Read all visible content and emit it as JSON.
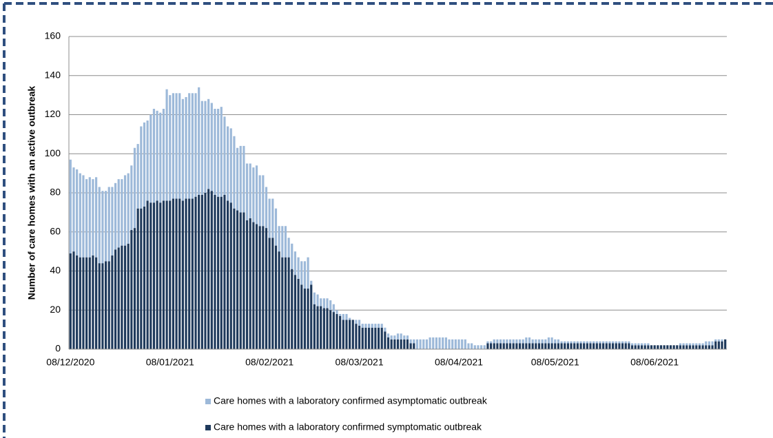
{
  "chart_data": {
    "type": "stacked-bar",
    "y_label": "Number of care homes with an active outbreak",
    "categories": [
      "08/12/2020",
      null,
      null,
      null,
      null,
      null,
      null,
      null,
      null,
      null,
      null,
      null,
      null,
      null,
      null,
      null,
      null,
      null,
      null,
      null,
      null,
      null,
      null,
      null,
      null,
      null,
      null,
      null,
      null,
      null,
      null,
      "08/01/2021",
      null,
      null,
      null,
      null,
      null,
      null,
      null,
      null,
      null,
      null,
      null,
      null,
      null,
      null,
      null,
      null,
      null,
      null,
      null,
      null,
      null,
      null,
      null,
      null,
      null,
      null,
      null,
      null,
      null,
      null,
      "08/02/2021",
      null,
      null,
      null,
      null,
      null,
      null,
      null,
      null,
      null,
      null,
      null,
      null,
      null,
      null,
      null,
      null,
      null,
      null,
      null,
      null,
      null,
      null,
      null,
      null,
      null,
      null,
      null,
      "08/03/2021",
      null,
      null,
      null,
      null,
      null,
      null,
      null,
      null,
      null,
      null,
      null,
      null,
      null,
      null,
      null,
      null,
      null,
      null,
      null,
      null,
      null,
      null,
      null,
      null,
      null,
      null,
      null,
      null,
      null,
      null,
      "08/04/2021",
      null,
      null,
      null,
      null,
      null,
      null,
      null,
      null,
      null,
      null,
      null,
      null,
      null,
      null,
      null,
      null,
      null,
      null,
      null,
      null,
      null,
      null,
      null,
      null,
      null,
      null,
      null,
      null,
      null,
      "08/05/2021",
      null,
      null,
      null,
      null,
      null,
      null,
      null,
      null,
      null,
      null,
      null,
      null,
      null,
      null,
      null,
      null,
      null,
      null,
      null,
      null,
      null,
      null,
      null,
      null,
      null,
      null,
      null,
      null,
      null,
      null,
      "08/06/2021",
      null,
      null,
      null,
      null,
      null,
      null,
      null,
      null,
      null,
      null,
      null,
      null,
      null,
      null,
      null,
      null,
      null,
      null,
      null,
      null,
      null,
      null
    ],
    "series": [
      {
        "name": "Care homes with a laboratory confirmed symptomatic outbreak",
        "color": "#1f3a5c",
        "values": [
          49,
          50,
          48,
          47,
          47,
          47,
          47,
          48,
          47,
          44,
          44,
          45,
          45,
          48,
          51,
          52,
          53,
          53,
          54,
          61,
          62,
          72,
          72,
          73,
          76,
          75,
          75,
          76,
          75,
          76,
          76,
          76,
          77,
          77,
          77,
          76,
          77,
          77,
          77,
          78,
          79,
          79,
          80,
          82,
          81,
          79,
          78,
          78,
          79,
          76,
          75,
          72,
          71,
          70,
          70,
          66,
          67,
          65,
          64,
          63,
          63,
          62,
          57,
          57,
          53,
          50,
          47,
          47,
          47,
          41,
          38,
          36,
          33,
          31,
          31,
          33,
          23,
          22,
          22,
          21,
          21,
          20,
          19,
          18,
          17,
          15,
          15,
          15,
          15,
          13,
          12,
          11,
          11,
          11,
          11,
          11,
          11,
          11,
          9,
          6,
          5,
          5,
          5,
          5,
          5,
          5,
          3,
          3,
          0,
          0,
          0,
          0,
          0,
          0,
          0,
          0,
          0,
          0,
          0,
          0,
          0,
          0,
          0,
          0,
          0,
          0,
          0,
          0,
          0,
          0,
          3,
          3,
          3,
          3,
          3,
          3,
          3,
          3,
          3,
          3,
          3,
          3,
          3,
          3,
          3,
          3,
          3,
          3,
          3,
          3,
          3,
          3,
          3,
          3,
          3,
          3,
          3,
          3,
          3,
          3,
          3,
          3,
          3,
          3,
          3,
          3,
          3,
          3,
          3,
          3,
          3,
          3,
          3,
          3,
          3,
          2,
          2,
          2,
          2,
          2,
          2,
          2,
          2,
          2,
          2,
          2,
          2,
          2,
          2,
          2,
          2,
          2,
          2,
          2,
          2,
          2,
          2,
          2,
          2,
          2,
          2,
          4,
          4,
          4,
          5
        ]
      },
      {
        "name": "Care homes with a laboratory confirmed asymptomatic outbreak",
        "color": "#9db9d9",
        "values": [
          48,
          43,
          44,
          43,
          42,
          40,
          41,
          39,
          41,
          39,
          37,
          36,
          38,
          35,
          34,
          35,
          34,
          36,
          36,
          33,
          41,
          33,
          42,
          43,
          41,
          45,
          48,
          46,
          46,
          47,
          57,
          54,
          54,
          54,
          54,
          52,
          52,
          54,
          54,
          53,
          55,
          48,
          47,
          46,
          45,
          44,
          45,
          46,
          40,
          38,
          38,
          37,
          32,
          34,
          34,
          29,
          28,
          28,
          30,
          26,
          26,
          21,
          20,
          20,
          19,
          13,
          16,
          16,
          10,
          13,
          12,
          11,
          12,
          14,
          16,
          2,
          6,
          6,
          4,
          5,
          5,
          5,
          4,
          2,
          1,
          3,
          3,
          1,
          0,
          2,
          3,
          2,
          2,
          2,
          2,
          2,
          2,
          2,
          2,
          2,
          2,
          2,
          3,
          3,
          2,
          2,
          2,
          2,
          5,
          5,
          5,
          5,
          6,
          6,
          6,
          6,
          6,
          6,
          5,
          5,
          5,
          5,
          5,
          5,
          3,
          3,
          2,
          2,
          2,
          2,
          1,
          1,
          2,
          2,
          2,
          2,
          2,
          2,
          2,
          2,
          2,
          2,
          3,
          3,
          2,
          2,
          2,
          2,
          2,
          3,
          3,
          2,
          2,
          1,
          1,
          1,
          1,
          1,
          1,
          1,
          1,
          1,
          1,
          1,
          1,
          1,
          1,
          1,
          1,
          1,
          1,
          1,
          1,
          1,
          1,
          1,
          1,
          1,
          1,
          1,
          1,
          0,
          0,
          0,
          0,
          0,
          0,
          0,
          0,
          0,
          1,
          1,
          1,
          1,
          1,
          1,
          1,
          1,
          2,
          2,
          2,
          1,
          1,
          1,
          0
        ]
      }
    ],
    "ylim": [
      0,
      160
    ],
    "yticks": [
      0,
      20,
      40,
      60,
      80,
      100,
      120,
      140,
      160
    ],
    "grid": true
  }
}
